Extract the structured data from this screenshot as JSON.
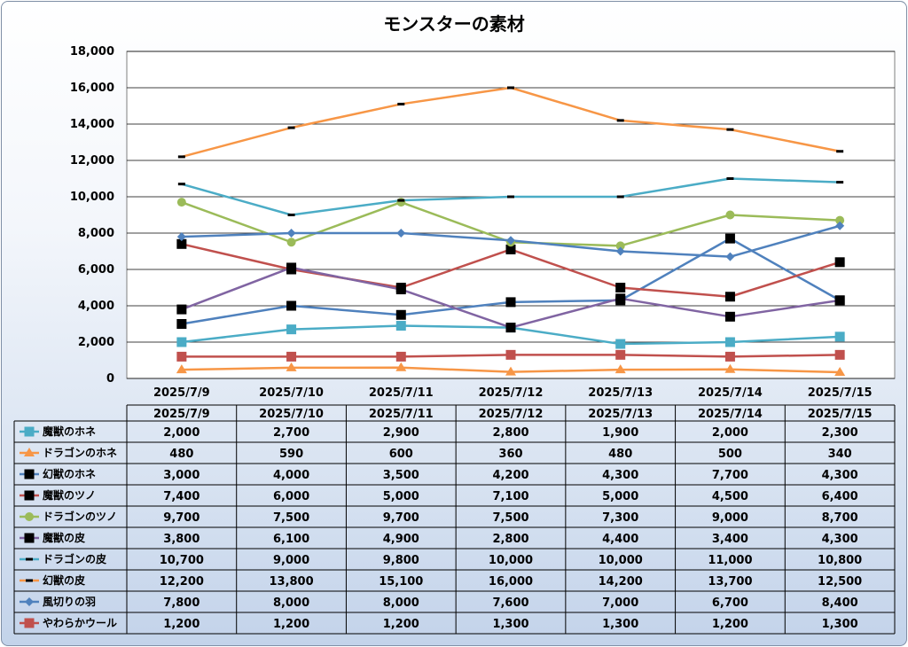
{
  "chart_data": {
    "type": "line",
    "title": "モンスターの素材",
    "xlabel": "",
    "ylabel": "",
    "ylim": [
      0,
      18000
    ],
    "y_ticks": [
      "0",
      "2,000",
      "4,000",
      "6,000",
      "8,000",
      "10,000",
      "12,000",
      "14,000",
      "16,000",
      "18,000"
    ],
    "grid": true,
    "legend_placement": "data-table-left",
    "categories": [
      "2025/7/9",
      "2025/7/10",
      "2025/7/11",
      "2025/7/12",
      "2025/7/13",
      "2025/7/14",
      "2025/7/15"
    ],
    "series": [
      {
        "name": "魔獣のホネ",
        "color": "#4bacc6",
        "marker": "square",
        "values": [
          2000,
          2700,
          2900,
          2800,
          1900,
          2000,
          2300
        ],
        "labels": [
          "2,000",
          "2,700",
          "2,900",
          "2,800",
          "1,900",
          "2,000",
          "2,300"
        ]
      },
      {
        "name": "ドラゴンのホネ",
        "color": "#f79646",
        "marker": "triangle",
        "values": [
          480,
          590,
          600,
          360,
          480,
          500,
          340
        ],
        "labels": [
          "480",
          "590",
          "600",
          "360",
          "480",
          "500",
          "340"
        ]
      },
      {
        "name": "幻獣のホネ",
        "color": "#4f81bd",
        "marker": "black-square",
        "values": [
          3000,
          4000,
          3500,
          4200,
          4300,
          7700,
          4300
        ],
        "labels": [
          "3,000",
          "4,000",
          "3,500",
          "4,200",
          "4,300",
          "7,700",
          "4,300"
        ]
      },
      {
        "name": "魔獣のツノ",
        "color": "#c0504d",
        "marker": "black-square",
        "values": [
          7400,
          6000,
          5000,
          7100,
          5000,
          4500,
          6400
        ],
        "labels": [
          "7,400",
          "6,000",
          "5,000",
          "7,100",
          "5,000",
          "4,500",
          "6,400"
        ]
      },
      {
        "name": "ドラゴンのツノ",
        "color": "#9bbb59",
        "marker": "circle",
        "values": [
          9700,
          7500,
          9700,
          7500,
          7300,
          9000,
          8700
        ],
        "labels": [
          "9,700",
          "7,500",
          "9,700",
          "7,500",
          "7,300",
          "9,000",
          "8,700"
        ]
      },
      {
        "name": "魔獣の皮",
        "color": "#8064a2",
        "marker": "black-square",
        "values": [
          3800,
          6100,
          4900,
          2800,
          4400,
          3400,
          4300
        ],
        "labels": [
          "3,800",
          "6,100",
          "4,900",
          "2,800",
          "4,400",
          "3,400",
          "4,300"
        ]
      },
      {
        "name": "ドラゴンの皮",
        "color": "#4bacc6",
        "marker": "dash",
        "values": [
          10700,
          9000,
          9800,
          10000,
          10000,
          11000,
          10800
        ],
        "labels": [
          "10,700",
          "9,000",
          "9,800",
          "10,000",
          "10,000",
          "11,000",
          "10,800"
        ]
      },
      {
        "name": "幻獣の皮",
        "color": "#f79646",
        "marker": "dash",
        "values": [
          12200,
          13800,
          15100,
          16000,
          14200,
          13700,
          12500
        ],
        "labels": [
          "12,200",
          "13,800",
          "15,100",
          "16,000",
          "14,200",
          "13,700",
          "12,500"
        ]
      },
      {
        "name": "風切りの羽",
        "color": "#4f81bd",
        "marker": "diamond",
        "values": [
          7800,
          8000,
          8000,
          7600,
          7000,
          6700,
          8400
        ],
        "labels": [
          "7,800",
          "8,000",
          "8,000",
          "7,600",
          "7,000",
          "6,700",
          "8,400"
        ]
      },
      {
        "name": "やわらかウール",
        "color": "#c0504d",
        "marker": "red-square",
        "values": [
          1200,
          1200,
          1200,
          1300,
          1300,
          1200,
          1300
        ],
        "labels": [
          "1,200",
          "1,200",
          "1,200",
          "1,300",
          "1,300",
          "1,200",
          "1,300"
        ]
      }
    ]
  }
}
